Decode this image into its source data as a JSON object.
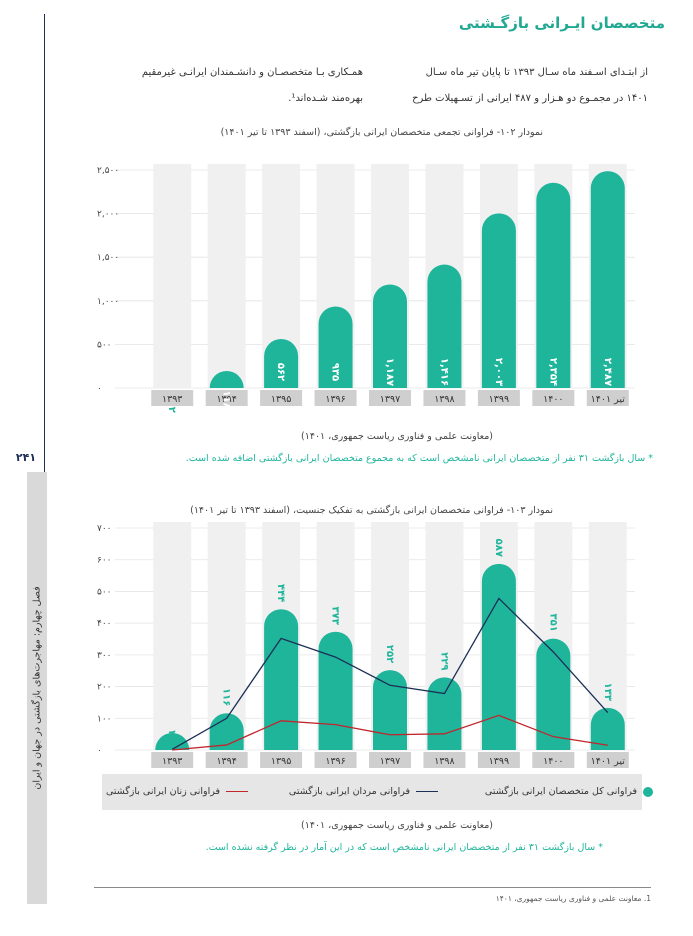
{
  "page": {
    "title": "متخصصان ایـرانی بازگـشتی",
    "page_number": "۲۴۱",
    "rail_text": "فصل چهارم: مهاجرت‌های بازگشتی در جهان و ایران",
    "intro_right_line1": "از ابتـدای اسـفند ماه سـال ۱۳۹۳ تا پایان تیر ماه سـال",
    "intro_right_line2": "۱۴۰۱ در مجمـوع دو هـزار و ۴۸۷ ایرانی از تسـهیلات طرح",
    "intro_left_line1": "همـکاری بـا متخصصـان و دانشـمندان ایرانـی غیرمقیم",
    "intro_left_line2": "بهره‌مند شـده‌اند¹.",
    "footnote": "1. معاونت علمی و فناوری ریاست جمهوری، ۱۴۰۱"
  },
  "chart1": {
    "caption": "نمودار ۱۰۲- فراوانی تجمعی متخصصان ایرانی بازگشتی، (اسفند ۱۳۹۳ تا تیر ۱۴۰۱)",
    "source": "(معاونت علمی و فناوری ریاست جمهوری، ۱۴۰۱)",
    "note": "* سال بازگشت ۳۱ نفر از متخصصان ایرانی نامشخص است که به مجموع متخصصان ایرانی بازگشتی اضافه شده است."
  },
  "chart2": {
    "caption": "نمودار ۱۰۳- فراوانی متخصصان ایرانی بازگشتی به تفکیک جنسیت، (اسفند ۱۳۹۳ تا تیر ۱۴۰۱)",
    "source": "(معاونت علمی و فناوری ریاست جمهوری، ۱۴۰۱)",
    "note": "* سال بازگشت ۳۱ نفر از متخصصان ایرانی نامشخص است که در این آمار در نظر گرفته نشده است.",
    "legend": {
      "total": "فراوانی کل متخصصان ایرانی بازگشتی",
      "men": "فراوانی مردان ایرانی بازگشتی",
      "women": "فراوانی زنان ایرانی بازگشتی"
    }
  },
  "chart_data": [
    {
      "type": "bar",
      "categories": [
        "۱۳۹۳",
        "۱۳۹۴",
        "۱۳۹۵",
        "۱۳۹۶",
        "۱۳۹۷",
        "۱۳۹۸",
        "۱۳۹۹",
        "۱۴۰۰",
        "تیر ۱۴۰۱"
      ],
      "values": [
        2,
        118,
        562,
        935,
        1187,
        1416,
        2003,
        2354,
        2487
      ],
      "value_labels": [
        "۲",
        "۱۱۸",
        "۵۶۲",
        "۹۳۵",
        "۱,۱۸۷",
        "۱,۴۱۶",
        "۲,۰۰۳",
        "۲,۳۵۴",
        "۲,۴۸۷"
      ],
      "yticks": [
        0,
        500,
        1000,
        1500,
        2000,
        2500
      ],
      "ytick_labels": [
        "۰",
        "۵۰۰",
        "۱,۰۰۰",
        "۱,۵۰۰",
        "۲,۰۰۰",
        "۲,۵۰۰"
      ],
      "ylim": [
        0,
        2500
      ],
      "grid": true,
      "colors": {
        "bar": "#1fb59b",
        "bg_column": "#f0f0f0",
        "label": "#ffffff"
      }
    },
    {
      "type": "bar",
      "categories": [
        "۱۳۹۳",
        "۱۳۹۴",
        "۱۳۹۵",
        "۱۳۹۶",
        "۱۳۹۷",
        "۱۳۹۸",
        "۱۳۹۹",
        "۱۴۰۰",
        "تیر ۱۴۰۱"
      ],
      "series": [
        {
          "name": "فراوانی کل متخصصان ایرانی بازگشتی",
          "kind": "bar",
          "values": [
            2,
            116,
            444,
            373,
            252,
            229,
            587,
            351,
            133
          ],
          "value_labels": [
            "۲",
            "۱۱۶",
            "۴۴۴",
            "۳۷۳",
            "۲۵۲",
            "۲۲۹",
            "۵۸۷",
            "۳۵۱",
            "۱۳۳"
          ]
        },
        {
          "name": "فراوانی مردان ایرانی بازگشتی",
          "kind": "line",
          "values": [
            2,
            100,
            352,
            293,
            204,
            178,
            478,
            309,
            118
          ]
        },
        {
          "name": "فراوانی زنان ایرانی بازگشتی",
          "kind": "line",
          "values": [
            0,
            16,
            92,
            80,
            48,
            51,
            109,
            42,
            15
          ]
        }
      ],
      "yticks": [
        0,
        100,
        200,
        300,
        400,
        500,
        600,
        700
      ],
      "ytick_labels": [
        "۰",
        "۱۰۰",
        "۲۰۰",
        "۳۰۰",
        "۴۰۰",
        "۵۰۰",
        "۶۰۰",
        "۷۰۰"
      ],
      "ylim": [
        0,
        700
      ],
      "grid": true,
      "legend_position": "bottom",
      "colors": {
        "bar": "#1fb59b",
        "men": "#1c2f55",
        "women": "#c0262c",
        "bg_column": "#f0f0f0",
        "value_label": "#1fb59b"
      }
    }
  ]
}
